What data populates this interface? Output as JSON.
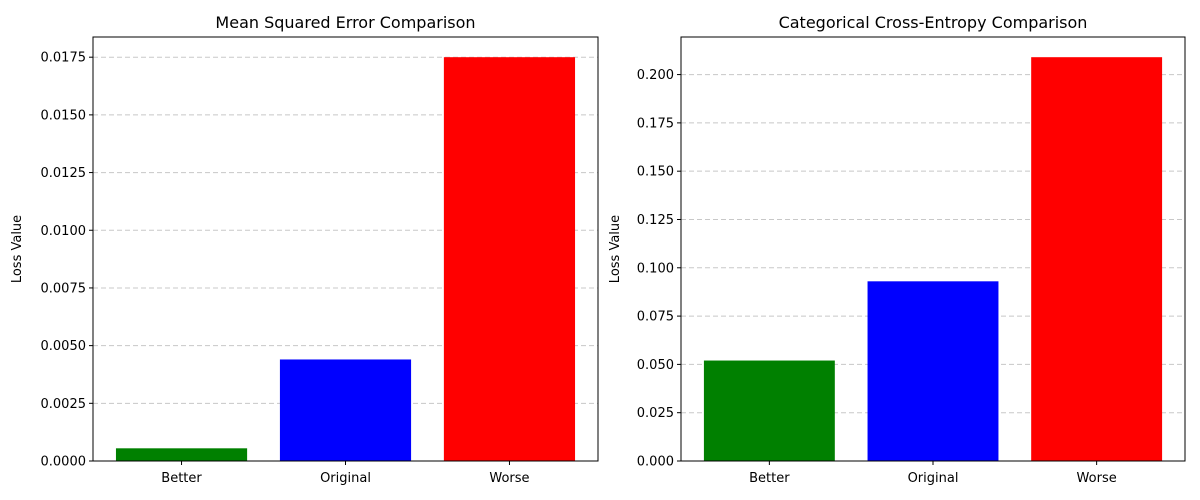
{
  "chart_data": [
    {
      "type": "bar",
      "title": "Mean Squared Error Comparison",
      "xlabel": "",
      "ylabel": "Loss Value",
      "categories": [
        "Better",
        "Original",
        "Worse"
      ],
      "values": [
        0.00055,
        0.0044,
        0.0175
      ],
      "colors": [
        "#008000",
        "#0000ff",
        "#ff0000"
      ],
      "ylim": [
        0,
        0.018375
      ],
      "yticks": [
        0,
        0.0025,
        0.005,
        0.0075,
        0.01,
        0.0125,
        0.015,
        0.0175
      ],
      "ytick_labels": [
        "0.0000",
        "0.0025",
        "0.0050",
        "0.0075",
        "0.0100",
        "0.0125",
        "0.0150",
        "0.0175"
      ],
      "grid": "y-dashed"
    },
    {
      "type": "bar",
      "title": "Categorical Cross-Entropy Comparison",
      "xlabel": "",
      "ylabel": "Loss Value",
      "categories": [
        "Better",
        "Original",
        "Worse"
      ],
      "values": [
        0.052,
        0.093,
        0.209
      ],
      "colors": [
        "#008000",
        "#0000ff",
        "#ff0000"
      ],
      "ylim": [
        0,
        0.21945
      ],
      "yticks": [
        0,
        0.025,
        0.05,
        0.075,
        0.1,
        0.125,
        0.15,
        0.175,
        0.2
      ],
      "ytick_labels": [
        "0.000",
        "0.025",
        "0.050",
        "0.075",
        "0.100",
        "0.125",
        "0.150",
        "0.175",
        "0.200"
      ],
      "grid": "y-dashed"
    }
  ]
}
